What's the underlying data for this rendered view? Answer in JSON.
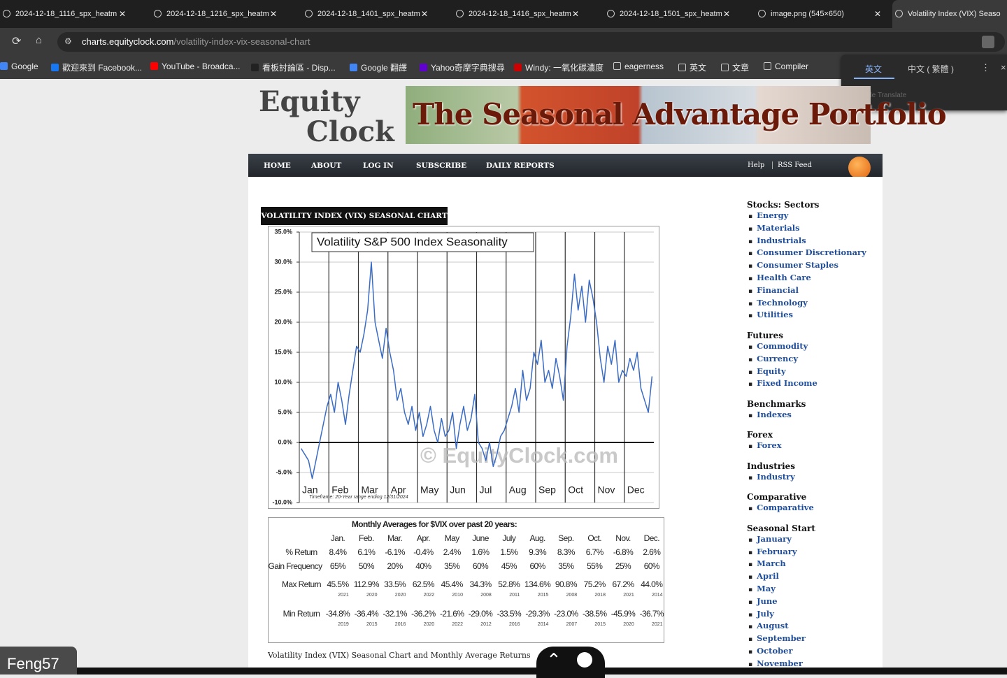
{
  "browser": {
    "tabs": [
      "2024-12-18_1116_spx_heatm",
      "2024-12-18_1216_spx_heatm",
      "2024-12-18_1401_spx_heatm",
      "2024-12-18_1416_spx_heatm",
      "2024-12-18_1501_spx_heatm",
      "image.png (545×650)",
      "Volatility Index (VIX) Seaso"
    ],
    "url_host": "charts.equityclock.com",
    "url_path": "/volatility-index-vix-seasonal-chart",
    "bookmarks": [
      "Google",
      "歡迎來到 Facebook...",
      "YouTube - Broadca...",
      "看板討論區 - Disp...",
      "Google 翻譯",
      "Yahoo奇摩字典搜尋",
      "Windy: 一氧化碳濃度",
      "eagerness",
      "英文",
      "文章",
      "Compiler"
    ]
  },
  "translate_popup": {
    "languages": [
      "英文",
      "中文 ( 繁體 )"
    ],
    "footer": "Google Translate"
  },
  "site": {
    "logo": [
      "Equity",
      "Clock"
    ],
    "banner": "The Seasonal Advantage Portfolio",
    "nav": [
      "HOME",
      "ABOUT",
      "LOG IN",
      "SUBSCRIBE",
      "DAILY REPORTS"
    ],
    "nav_right": [
      "Help",
      "RSS Feed"
    ]
  },
  "section_title": "VOLATILITY INDEX (VIX) SEASONAL CHART",
  "chart_data": {
    "type": "line",
    "title": "Volatility S&P 500 Index Seasonality",
    "x_tick_labels": [
      "Jan",
      "Feb",
      "Mar",
      "Apr",
      "May",
      "Jun",
      "Jul",
      "Aug",
      "Sep",
      "Oct",
      "Nov",
      "Dec"
    ],
    "series": [
      {
        "color": "#3b6cc4",
        "values": [
          -1,
          -2,
          -3,
          -6,
          -3,
          0,
          3,
          6,
          8,
          5,
          10,
          7,
          3,
          8,
          12,
          16,
          15,
          18,
          22,
          30,
          20,
          17,
          14,
          19,
          15,
          12,
          7,
          9,
          5,
          3,
          6,
          2,
          5,
          1,
          3,
          6,
          2,
          0,
          4,
          1,
          2,
          5,
          -1,
          3,
          6,
          2,
          4,
          8,
          0,
          -1,
          -3,
          0,
          -4,
          -2,
          1,
          2,
          4,
          6,
          9,
          5,
          12,
          7,
          9,
          15,
          13,
          17,
          10,
          12,
          9,
          14,
          11,
          7,
          16,
          21,
          28,
          22,
          26,
          20,
          27,
          24,
          20,
          14,
          10,
          16,
          13,
          17,
          10,
          12,
          11,
          14,
          12,
          15,
          9,
          7,
          5,
          11
        ]
      }
    ],
    "ylim": [
      -10,
      35
    ],
    "yticks": [
      {
        "value": 35,
        "label": "35.0%"
      },
      {
        "value": 30,
        "label": "30.0%"
      },
      {
        "value": 25,
        "label": "25.0%"
      },
      {
        "value": 20,
        "label": "20.0%"
      },
      {
        "value": 15,
        "label": "15.0%"
      },
      {
        "value": 10,
        "label": "10.0%"
      },
      {
        "value": 5,
        "label": "5.0%"
      },
      {
        "value": 0,
        "label": "0.0%"
      },
      {
        "value": -5,
        "label": "-5.0%"
      },
      {
        "value": -10,
        "label": "-10.0%"
      }
    ],
    "grid": true,
    "watermark": "© EquityClock.com",
    "note": "Timeframe: 20-Year range ending 12/31/2024"
  },
  "table": {
    "title": "Monthly Averages for $VIX over past 20 years:",
    "columns": [
      "Jan.",
      "Feb.",
      "Mar.",
      "Apr.",
      "May",
      "June",
      "July",
      "Aug.",
      "Sep.",
      "Oct.",
      "Nov.",
      "Dec."
    ],
    "rows": [
      {
        "label": "% Return",
        "values": [
          "8.4%",
          "6.1%",
          "-6.1%",
          "-0.4%",
          "2.4%",
          "1.6%",
          "1.5%",
          "9.3%",
          "8.3%",
          "6.7%",
          "-6.8%",
          "2.6%"
        ]
      },
      {
        "label": "Gain Frequency",
        "values": [
          "65%",
          "50%",
          "20%",
          "40%",
          "35%",
          "60%",
          "45%",
          "60%",
          "35%",
          "55%",
          "25%",
          "60%"
        ]
      },
      {
        "label": "Max Return",
        "values": [
          "45.5%",
          "112.9%",
          "33.5%",
          "62.5%",
          "45.4%",
          "34.3%",
          "52.8%",
          "134.6%",
          "90.8%",
          "75.2%",
          "67.2%",
          "44.0%"
        ],
        "years": [
          "2021",
          "2020",
          "2020",
          "2022",
          "2010",
          "2008",
          "2011",
          "2015",
          "2008",
          "2018",
          "2021",
          "2014"
        ]
      },
      {
        "label": "Min Return",
        "values": [
          "-34.8%",
          "-36.4%",
          "-32.1%",
          "-36.2%",
          "-21.6%",
          "-29.0%",
          "-33.5%",
          "-29.3%",
          "-23.0%",
          "-38.5%",
          "-45.9%",
          "-36.7%"
        ],
        "years": [
          "2019",
          "2015",
          "2016",
          "2020",
          "2022",
          "2012",
          "2016",
          "2014",
          "2007",
          "2015",
          "2020",
          "2021"
        ]
      }
    ]
  },
  "caption": "Volatility Index (VIX) Seasonal Chart and Monthly Average Returns",
  "sidebar": [
    {
      "heading": "Stocks: Sectors",
      "links": [
        "Energy",
        "Materials",
        "Industrials",
        "Consumer Discretionary",
        "Consumer Staples",
        "Health Care",
        "Financial",
        "Technology",
        "Utilities"
      ]
    },
    {
      "heading": "Futures",
      "links": [
        "Commodity",
        "Currency",
        "Equity",
        "Fixed Income"
      ]
    },
    {
      "heading": "Benchmarks",
      "links": [
        "Indexes"
      ]
    },
    {
      "heading": "Forex",
      "links": [
        "Forex"
      ]
    },
    {
      "heading": "Industries",
      "links": [
        "Industry"
      ]
    },
    {
      "heading": "Comparative",
      "links": [
        "Comparative"
      ]
    },
    {
      "heading": "Seasonal Start",
      "links": [
        "January",
        "February",
        "March",
        "April",
        "May",
        "June",
        "July",
        "August",
        "September",
        "October",
        "November"
      ]
    }
  ],
  "overlay_user": "Feng57"
}
